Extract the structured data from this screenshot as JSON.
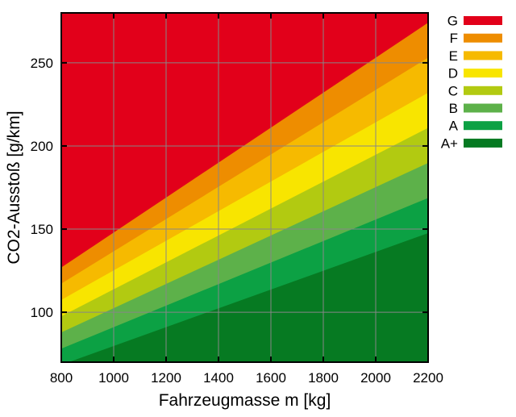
{
  "chart_data": {
    "type": "area",
    "title": "",
    "xlabel": "Fahrzeugmasse m [kg]",
    "ylabel": "CO2-Ausstoß [g/km]",
    "xlim": [
      800,
      2200
    ],
    "ylim": [
      70,
      280
    ],
    "xticks": [
      800,
      1000,
      1200,
      1400,
      1600,
      1800,
      2000,
      2200
    ],
    "yticks": [
      100,
      150,
      200,
      250
    ],
    "grid": true,
    "legend_position": "outside-top-right",
    "classes": [
      {
        "label": "G",
        "color": "#e2001a",
        "upper_boundary": null,
        "note": "fills entire plot above F"
      },
      {
        "label": "F",
        "color": "#ee8d00",
        "upper_boundary": [
          126.9,
          274.1
        ]
      },
      {
        "label": "E",
        "color": "#f6ba00",
        "upper_boundary": [
          117.2,
          253.1
        ]
      },
      {
        "label": "D",
        "color": "#f8e500",
        "upper_boundary": [
          107.4,
          232.0
        ]
      },
      {
        "label": "C",
        "color": "#b2ca11",
        "upper_boundary": [
          97.6,
          210.9
        ]
      },
      {
        "label": "B",
        "color": "#5db14a",
        "upper_boundary": [
          87.9,
          189.8
        ]
      },
      {
        "label": "A",
        "color": "#0ca144",
        "upper_boundary": [
          78.1,
          168.7
        ]
      },
      {
        "label": "A+",
        "color": "#067a22",
        "upper_boundary": [
          68.4,
          147.6
        ]
      }
    ],
    "boundary_x": [
      800,
      2200
    ]
  },
  "style_colors": {
    "background": "#ffffff",
    "plot_border": "#000000",
    "grid": "#878787",
    "tick": "#000000",
    "text": "#000000"
  }
}
